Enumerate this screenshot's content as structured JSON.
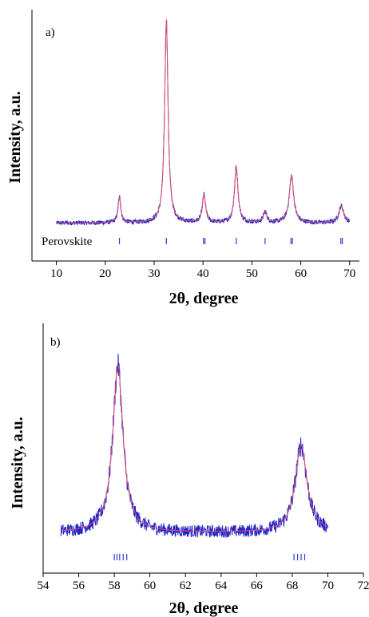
{
  "chart_data": [
    {
      "type": "line",
      "panel_label": "a)",
      "xlabel": "2θ, degree",
      "ylabel": "Intensity, a.u.",
      "xlim": [
        5,
        72
      ],
      "xticks": [
        10,
        20,
        30,
        40,
        50,
        60,
        70
      ],
      "x_range": [
        10,
        70
      ],
      "baseline": 0.04,
      "peaks": [
        {
          "x": 22.9,
          "height": 0.12,
          "width": 0.35
        },
        {
          "x": 32.5,
          "height": 0.96,
          "width": 0.42
        },
        {
          "x": 40.2,
          "height": 0.13,
          "width": 0.4
        },
        {
          "x": 46.8,
          "height": 0.26,
          "width": 0.45
        },
        {
          "x": 52.7,
          "height": 0.05,
          "width": 0.45
        },
        {
          "x": 58.1,
          "height": 0.22,
          "width": 0.55
        },
        {
          "x": 68.3,
          "height": 0.08,
          "width": 0.6
        }
      ],
      "series": [
        {
          "name": "",
          "role": "observed",
          "color": "#2323c8"
        },
        {
          "name": "",
          "role": "calculated",
          "color": "#e0506c"
        }
      ],
      "phase_label": "Perovskite",
      "reflections": [
        22.9,
        32.5,
        40.1,
        40.4,
        46.8,
        52.7,
        58.0,
        58.3,
        68.2,
        68.5
      ],
      "grid": false
    },
    {
      "type": "line",
      "panel_label": "b)",
      "xlabel": "2θ, degree",
      "ylabel": "Intensity, a.u.",
      "xlim": [
        54,
        72
      ],
      "xticks": [
        54,
        56,
        58,
        60,
        62,
        64,
        66,
        68,
        70,
        72
      ],
      "x_range": [
        55,
        70
      ],
      "baseline": 0.05,
      "peaks": [
        {
          "x": 58.2,
          "height": 0.82,
          "width": 0.35
        },
        {
          "x": 68.5,
          "height": 0.43,
          "width": 0.4
        }
      ],
      "series": [
        {
          "name": "",
          "role": "observed",
          "color": "#2323c8"
        },
        {
          "name": "",
          "role": "calculated",
          "color": "#e0506c"
        }
      ],
      "reflections": [
        58.0,
        58.15,
        58.3,
        58.5,
        58.7,
        68.1,
        68.3,
        68.5,
        68.7
      ],
      "grid": false
    }
  ]
}
